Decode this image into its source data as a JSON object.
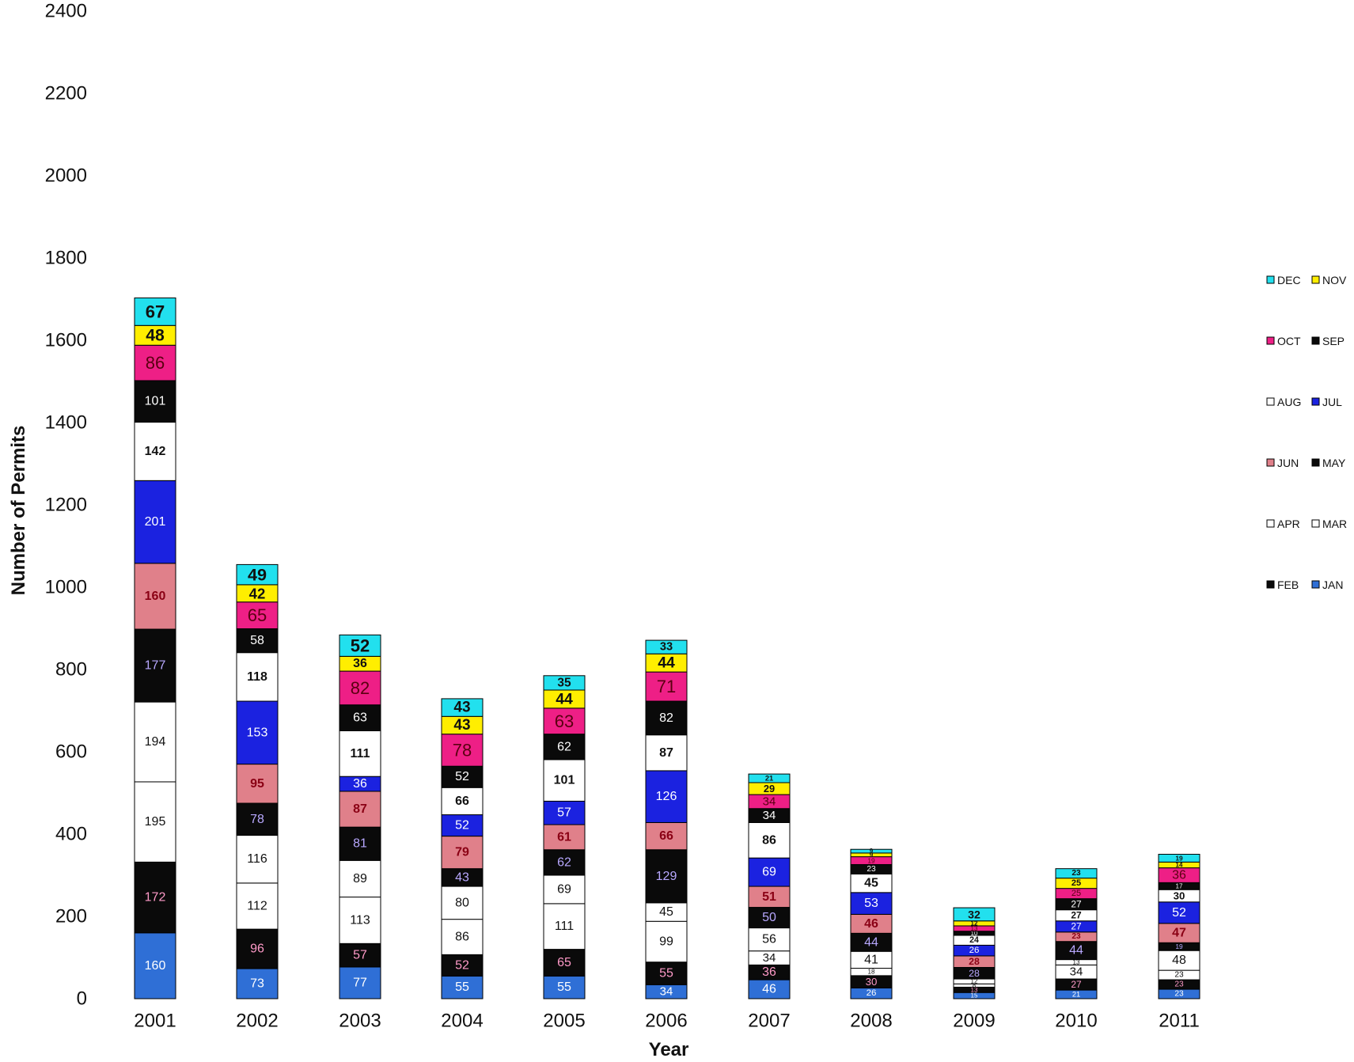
{
  "chart_data": {
    "type": "bar",
    "stacked": true,
    "title": "",
    "xlabel": "Year",
    "ylabel": "Number of Permits",
    "ylim": [
      0,
      2400
    ],
    "yticks": [
      0,
      200,
      400,
      600,
      800,
      1000,
      1200,
      1400,
      1600,
      1800,
      2000,
      2200,
      2400
    ],
    "categories": [
      "2001",
      "2002",
      "2003",
      "2004",
      "2005",
      "2006",
      "2007",
      "2008",
      "2009",
      "2010",
      "2011"
    ],
    "series": [
      {
        "name": "JAN",
        "color": "#2f6fd6",
        "values": [
          160,
          73,
          77,
          55,
          55,
          34,
          46,
          26,
          15,
          21,
          23
        ]
      },
      {
        "name": "FEB",
        "color": "#0a0a0a",
        "values": [
          172,
          96,
          57,
          52,
          65,
          55,
          36,
          30,
          13,
          27,
          23
        ]
      },
      {
        "name": "MAR",
        "color": "#ffffff",
        "values": [
          195,
          112,
          113,
          86,
          111,
          99,
          34,
          18,
          8,
          34,
          23
        ]
      },
      {
        "name": "APR",
        "color": "#ffffff",
        "values": [
          194,
          116,
          89,
          80,
          69,
          45,
          56,
          41,
          12,
          13,
          48
        ]
      },
      {
        "name": "MAY",
        "color": "#0a0a0a",
        "values": [
          177,
          78,
          81,
          43,
          62,
          129,
          50,
          44,
          28,
          44,
          19
        ]
      },
      {
        "name": "JUN",
        "color": "#e0808a",
        "values": [
          160,
          95,
          87,
          79,
          61,
          66,
          51,
          46,
          28,
          23,
          47
        ]
      },
      {
        "name": "JUL",
        "color": "#1b22e0",
        "values": [
          201,
          153,
          36,
          52,
          57,
          126,
          69,
          53,
          26,
          27,
          52
        ]
      },
      {
        "name": "AUG",
        "color": "#ffffff",
        "values": [
          142,
          118,
          111,
          66,
          101,
          87,
          86,
          45,
          24,
          27,
          30
        ]
      },
      {
        "name": "SEP",
        "color": "#0a0a0a",
        "values": [
          101,
          58,
          63,
          52,
          62,
          82,
          34,
          23,
          10,
          27,
          17
        ]
      },
      {
        "name": "OCT",
        "color": "#ee1f86",
        "values": [
          86,
          65,
          82,
          78,
          63,
          71,
          34,
          19,
          13,
          25,
          36
        ]
      },
      {
        "name": "NOV",
        "color": "#ffee00",
        "values": [
          48,
          42,
          36,
          43,
          44,
          44,
          29,
          9,
          12,
          25,
          14
        ]
      },
      {
        "name": "DEC",
        "color": "#22e0ee",
        "values": [
          67,
          49,
          52,
          43,
          35,
          33,
          21,
          9,
          32,
          23,
          19
        ]
      }
    ],
    "legend": {
      "placement": "right",
      "rows": [
        [
          "DEC",
          "NOV"
        ],
        [
          "OCT",
          "SEP"
        ],
        [
          "AUG",
          "JUL"
        ],
        [
          "JUN",
          "MAY"
        ],
        [
          "APR",
          "MAR"
        ],
        [
          "FEB",
          "JAN"
        ]
      ]
    }
  }
}
